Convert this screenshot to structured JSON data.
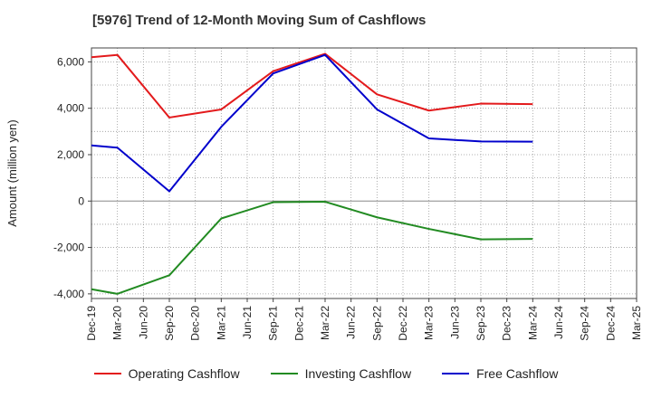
{
  "chart_data": {
    "type": "line",
    "title": "[5976]  Trend of 12-Month Moving Sum of Cashflows",
    "ylabel": "Amount (million yen)",
    "xlabel": "",
    "ylim": [
      -4200,
      6600
    ],
    "yticks": [
      -4000,
      -2000,
      0,
      2000,
      4000,
      6000
    ],
    "ytick_labels": [
      "-4,000",
      "-2,000",
      "0",
      "2,000",
      "4,000",
      "6,000"
    ],
    "categories": [
      "Dec-19",
      "Mar-20",
      "Jun-20",
      "Sep-20",
      "Dec-20",
      "Mar-21",
      "Jun-21",
      "Sep-21",
      "Dec-21",
      "Mar-22",
      "Jun-22",
      "Sep-22",
      "Dec-22",
      "Mar-23",
      "Jun-23",
      "Sep-23",
      "Dec-23",
      "Mar-24",
      "Jun-24",
      "Sep-24",
      "Dec-24",
      "Mar-25"
    ],
    "grid": true,
    "legend_position": "bottom",
    "series": [
      {
        "name": "Operating Cashflow",
        "color": "#e31a1c",
        "points": [
          [
            "Dec-19",
            6200
          ],
          [
            "Mar-20",
            6300
          ],
          [
            "Sep-20",
            3600
          ],
          [
            "Mar-21",
            3950
          ],
          [
            "Sep-21",
            5600
          ],
          [
            "Mar-22",
            6350
          ],
          [
            "Sep-22",
            4600
          ],
          [
            "Mar-23",
            3900
          ],
          [
            "Sep-23",
            4200
          ],
          [
            "Mar-24",
            4180
          ]
        ]
      },
      {
        "name": "Investing Cashflow",
        "color": "#228b22",
        "points": [
          [
            "Dec-19",
            -3800
          ],
          [
            "Mar-20",
            -4000
          ],
          [
            "Sep-20",
            -3200
          ],
          [
            "Mar-21",
            -750
          ],
          [
            "Sep-21",
            -50
          ],
          [
            "Mar-22",
            -30
          ],
          [
            "Sep-22",
            -700
          ],
          [
            "Mar-23",
            -1200
          ],
          [
            "Sep-23",
            -1650
          ],
          [
            "Mar-24",
            -1630
          ]
        ]
      },
      {
        "name": "Free Cashflow",
        "color": "#0000cc",
        "points": [
          [
            "Dec-19",
            2400
          ],
          [
            "Mar-20",
            2300
          ],
          [
            "Sep-20",
            420
          ],
          [
            "Mar-21",
            3200
          ],
          [
            "Sep-21",
            5500
          ],
          [
            "Mar-22",
            6300
          ],
          [
            "Sep-22",
            3950
          ],
          [
            "Mar-23",
            2700
          ],
          [
            "Sep-23",
            2570
          ],
          [
            "Mar-24",
            2560
          ]
        ]
      }
    ]
  }
}
